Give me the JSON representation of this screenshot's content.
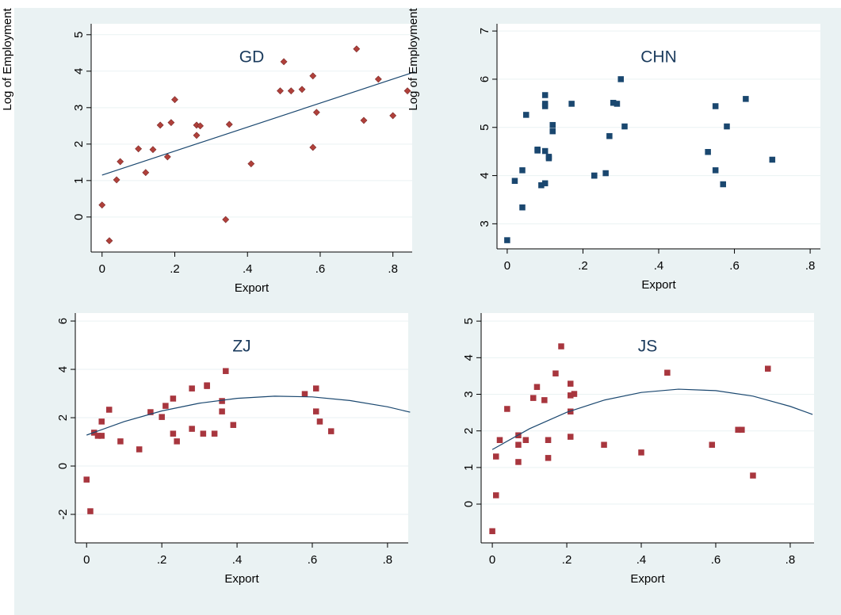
{
  "chart_data": [
    {
      "type": "scatter",
      "title": "GD",
      "xlabel": "Export",
      "ylabel": "Log of Employment",
      "xlim": [
        -0.03,
        0.853
      ],
      "ylim": [
        -0.96,
        5.3
      ],
      "xticks": [
        0,
        {
          "value": 0.2,
          "label": ".2"
        },
        {
          "value": 0.4,
          "label": ".4"
        },
        {
          "value": 0.6,
          "label": ".6"
        },
        {
          "value": 0.8,
          "label": ".8"
        }
      ],
      "yticks": [
        0,
        1,
        2,
        3,
        4,
        5
      ],
      "grid": true,
      "series": [
        {
          "type": "scatter",
          "marker": "diamond",
          "color": "#b0403a",
          "x": [
            0.0,
            0.02,
            0.04,
            0.05,
            0.1,
            0.12,
            0.14,
            0.16,
            0.18,
            0.19,
            0.2,
            0.26,
            0.26,
            0.27,
            0.34,
            0.35,
            0.41,
            0.49,
            0.5,
            0.52,
            0.55,
            0.58,
            0.58,
            0.59,
            0.7,
            0.72,
            0.76,
            0.8,
            0.84
          ],
          "values": [
            0.33,
            -0.65,
            1.02,
            1.52,
            1.87,
            1.22,
            1.85,
            2.52,
            1.65,
            2.59,
            3.22,
            2.52,
            2.24,
            2.5,
            -0.07,
            2.54,
            1.46,
            3.46,
            4.26,
            3.46,
            3.5,
            1.91,
            3.87,
            2.87,
            4.61,
            2.65,
            3.78,
            2.78,
            3.46
          ]
        },
        {
          "type": "line",
          "color": "#1a476f",
          "x": [
            0,
            0.86
          ],
          "values": [
            1.15,
            3.98
          ]
        }
      ]
    },
    {
      "type": "scatter",
      "title": "CHN",
      "xlabel": "Export",
      "ylabel": "Log of Employment",
      "xlim": [
        -0.027,
        0.827
      ],
      "ylim": [
        2.48,
        7.15
      ],
      "xticks": [
        0,
        {
          "value": 0.2,
          "label": ".2"
        },
        {
          "value": 0.4,
          "label": ".4"
        },
        {
          "value": 0.6,
          "label": ".6"
        },
        {
          "value": 0.8,
          "label": ".8"
        }
      ],
      "yticks": [
        3,
        4,
        5,
        6,
        7
      ],
      "grid": true,
      "series": [
        {
          "type": "scatter",
          "marker": "square",
          "color": "#1a476f",
          "x": [
            0.0,
            0.02,
            0.04,
            0.04,
            0.05,
            0.08,
            0.08,
            0.09,
            0.1,
            0.1,
            0.1,
            0.1,
            0.1,
            0.11,
            0.11,
            0.12,
            0.12,
            0.17,
            0.23,
            0.23,
            0.26,
            0.27,
            0.28,
            0.29,
            0.3,
            0.31,
            0.53,
            0.55,
            0.55,
            0.57,
            0.58,
            0.63,
            0.7
          ],
          "values": [
            2.66,
            3.89,
            3.34,
            4.11,
            5.26,
            4.52,
            4.54,
            3.8,
            3.84,
            5.44,
            5.49,
            5.67,
            4.51,
            4.39,
            4.36,
            5.05,
            4.92,
            5.49,
            4.0,
            4.0,
            4.05,
            4.82,
            5.51,
            5.49,
            6.0,
            5.02,
            4.49,
            4.11,
            5.44,
            3.82,
            5.02,
            5.59,
            4.33
          ]
        }
      ]
    },
    {
      "type": "scatter",
      "title": "ZJ",
      "xlabel": "Export",
      "xlim": [
        -0.03,
        0.855
      ],
      "ylim": [
        -3.18,
        6.33
      ],
      "xticks": [
        0,
        {
          "value": 0.2,
          "label": ".2"
        },
        {
          "value": 0.4,
          "label": ".4"
        },
        {
          "value": 0.6,
          "label": ".6"
        },
        {
          "value": 0.8,
          "label": ".8"
        }
      ],
      "yticks": [
        -2,
        0,
        2,
        4,
        6
      ],
      "grid": true,
      "series": [
        {
          "type": "scatter",
          "marker": "square",
          "color": "#a8363e",
          "x": [
            0.0,
            0.01,
            0.02,
            0.03,
            0.04,
            0.04,
            0.06,
            0.09,
            0.14,
            0.17,
            0.2,
            0.21,
            0.23,
            0.23,
            0.24,
            0.28,
            0.28,
            0.31,
            0.32,
            0.32,
            0.34,
            0.36,
            0.36,
            0.37,
            0.39,
            0.58,
            0.61,
            0.61,
            0.62,
            0.65
          ],
          "values": [
            -0.56,
            -1.87,
            1.38,
            1.25,
            1.25,
            1.84,
            2.33,
            1.02,
            0.69,
            2.23,
            2.03,
            2.49,
            1.34,
            2.79,
            1.02,
            1.54,
            3.21,
            1.34,
            3.34,
            3.31,
            1.34,
            2.26,
            2.69,
            3.93,
            1.7,
            2.98,
            3.21,
            2.26,
            1.84,
            1.44
          ]
        },
        {
          "type": "line",
          "color": "#1a476f",
          "x": [
            0,
            0.1,
            0.2,
            0.3,
            0.4,
            0.5,
            0.6,
            0.7,
            0.8,
            0.86
          ],
          "values": [
            1.28,
            1.84,
            2.28,
            2.6,
            2.8,
            2.89,
            2.86,
            2.71,
            2.45,
            2.23
          ]
        }
      ]
    },
    {
      "type": "scatter",
      "title": "JS",
      "xlabel": "Export",
      "xlim": [
        -0.03,
        0.864
      ],
      "ylim": [
        -1.06,
        5.22
      ],
      "xticks": [
        0,
        {
          "value": 0.2,
          "label": ".2"
        },
        {
          "value": 0.4,
          "label": ".4"
        },
        {
          "value": 0.6,
          "label": ".6"
        },
        {
          "value": 0.8,
          "label": ".8"
        }
      ],
      "yticks": [
        0,
        1,
        2,
        3,
        4,
        5
      ],
      "grid": true,
      "series": [
        {
          "type": "scatter",
          "marker": "square",
          "color": "#a8363e",
          "x": [
            0.0,
            0.01,
            0.01,
            0.02,
            0.04,
            0.07,
            0.07,
            0.07,
            0.09,
            0.11,
            0.12,
            0.14,
            0.15,
            0.15,
            0.17,
            0.185,
            0.21,
            0.21,
            0.21,
            0.21,
            0.22,
            0.3,
            0.4,
            0.47,
            0.59,
            0.66,
            0.67,
            0.7,
            0.74
          ],
          "values": [
            -0.74,
            1.3,
            0.24,
            1.75,
            2.6,
            1.15,
            1.88,
            1.62,
            1.75,
            2.9,
            3.2,
            2.84,
            1.26,
            1.75,
            3.57,
            4.31,
            1.84,
            3.29,
            2.53,
            2.97,
            3.01,
            1.62,
            1.41,
            3.59,
            1.62,
            2.03,
            2.03,
            0.78,
            3.7
          ]
        },
        {
          "type": "line",
          "color": "#1a476f",
          "x": [
            0,
            0.1,
            0.2,
            0.3,
            0.4,
            0.5,
            0.6,
            0.7,
            0.8,
            0.86
          ],
          "values": [
            1.49,
            2.06,
            2.51,
            2.84,
            3.05,
            3.14,
            3.1,
            2.95,
            2.67,
            2.45
          ]
        }
      ]
    }
  ]
}
